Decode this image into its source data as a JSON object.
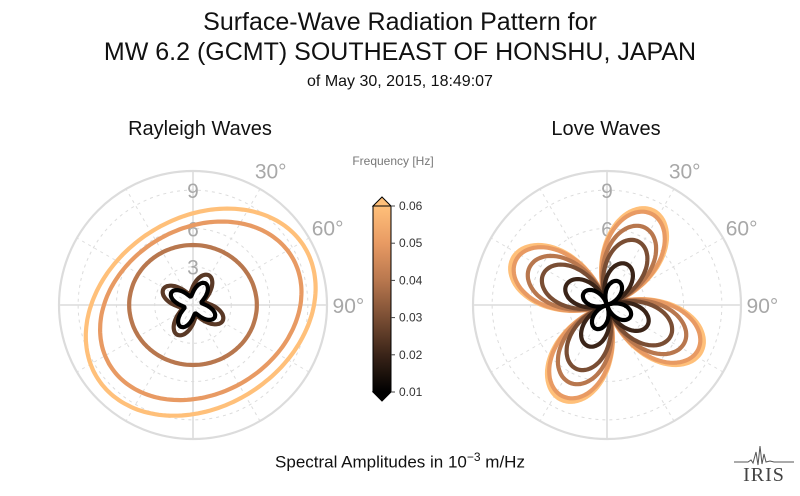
{
  "title": {
    "line1": "Surface-Wave Radiation Pattern for",
    "line2": "MW 6.2 (GCMT) SOUTHEAST OF HONSHU, JAPAN",
    "line3": "of May 30, 2015, 18:49:07"
  },
  "x_axis_label_prefix": "Spectral Amplitudes in ",
  "x_axis_label_base": "10",
  "x_axis_label_exp": "−3",
  "x_axis_label_suffix": " m/Hz",
  "logo_text": "IRIS",
  "colors": {
    "grid": "#dcdcdc",
    "tick_text": "#a8a8a8",
    "colormap": [
      "#000000",
      "#3a2418",
      "#7a4e34",
      "#b8774e",
      "#e89a63",
      "#ffc07a"
    ]
  },
  "chart_data": [
    {
      "type": "polar",
      "title": "Rayleigh Waves",
      "radial_ticks": [
        "3",
        "6",
        "9"
      ],
      "radial_max": 10.5,
      "angle_ticks": [
        "30°",
        "60°",
        "90°"
      ],
      "grid": true,
      "series": [
        {
          "frequency": 0.06,
          "a": 9.6,
          "b": 7.4,
          "rot": -33,
          "dx": 0.2,
          "dy": 0.8
        },
        {
          "frequency": 0.05,
          "a": 8.3,
          "b": 6.5,
          "rot": -30,
          "dx": 0.3,
          "dy": 0.7
        },
        {
          "frequency": 0.04,
          "a": 5.0,
          "b": 4.7,
          "rot": 0,
          "dx": 0.0,
          "dy": 0.0
        },
        {
          "frequency": 0.025,
          "quad": true,
          "scale": 1.55,
          "rot": 28
        },
        {
          "frequency": 0.01,
          "quad": true,
          "scale": 1.15,
          "rot": 30
        }
      ]
    },
    {
      "type": "polar",
      "title": "Love Waves",
      "radial_ticks": [
        "3",
        "6",
        "9"
      ],
      "radial_max": 10.5,
      "angle_ticks": [
        "30°",
        "60°",
        "90°"
      ],
      "grid": true,
      "series": [
        {
          "frequency": 0.06,
          "amp": 8.1,
          "rot": 26
        },
        {
          "frequency": 0.05,
          "amp": 7.8,
          "rot": 26
        },
        {
          "frequency": 0.04,
          "amp": 6.6,
          "rot": 26
        },
        {
          "frequency": 0.03,
          "amp": 5.4,
          "rot": 26
        },
        {
          "frequency": 0.02,
          "amp": 3.4,
          "rot": 26
        },
        {
          "frequency": 0.01,
          "amp": 1.9,
          "rot": 26
        }
      ]
    }
  ],
  "colorbar": {
    "label": "Frequency [Hz]",
    "min": 0.01,
    "max": 0.06,
    "ticks": [
      "0.01",
      "0.02",
      "0.03",
      "0.04",
      "0.05",
      "0.06"
    ]
  }
}
